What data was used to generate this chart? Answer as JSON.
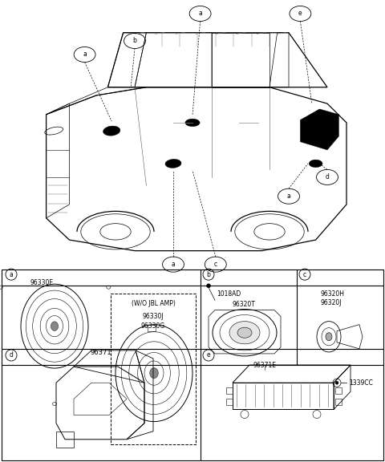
{
  "bg_color": "#ffffff",
  "border_color": "#000000",
  "part_a1": "96330E",
  "part_a2": "96330J",
  "part_a3": "96330G",
  "part_b1": "1018AD",
  "part_b2": "96320T",
  "part_c1": "96320H",
  "part_c2": "96320J",
  "part_d1": "96371",
  "part_e1": "96371E",
  "part_e2": "1339CC",
  "wjo_label": "(W/O JBL AMP)",
  "label_a": "a",
  "label_b": "b",
  "label_c": "c",
  "label_d": "d",
  "label_e": "e",
  "car_color": "#000000",
  "gray1": "#888888",
  "gray2": "#aaaaaa",
  "gray3": "#cccccc",
  "font_size_label": 6,
  "font_size_part": 5.5,
  "font_size_tag": 5
}
